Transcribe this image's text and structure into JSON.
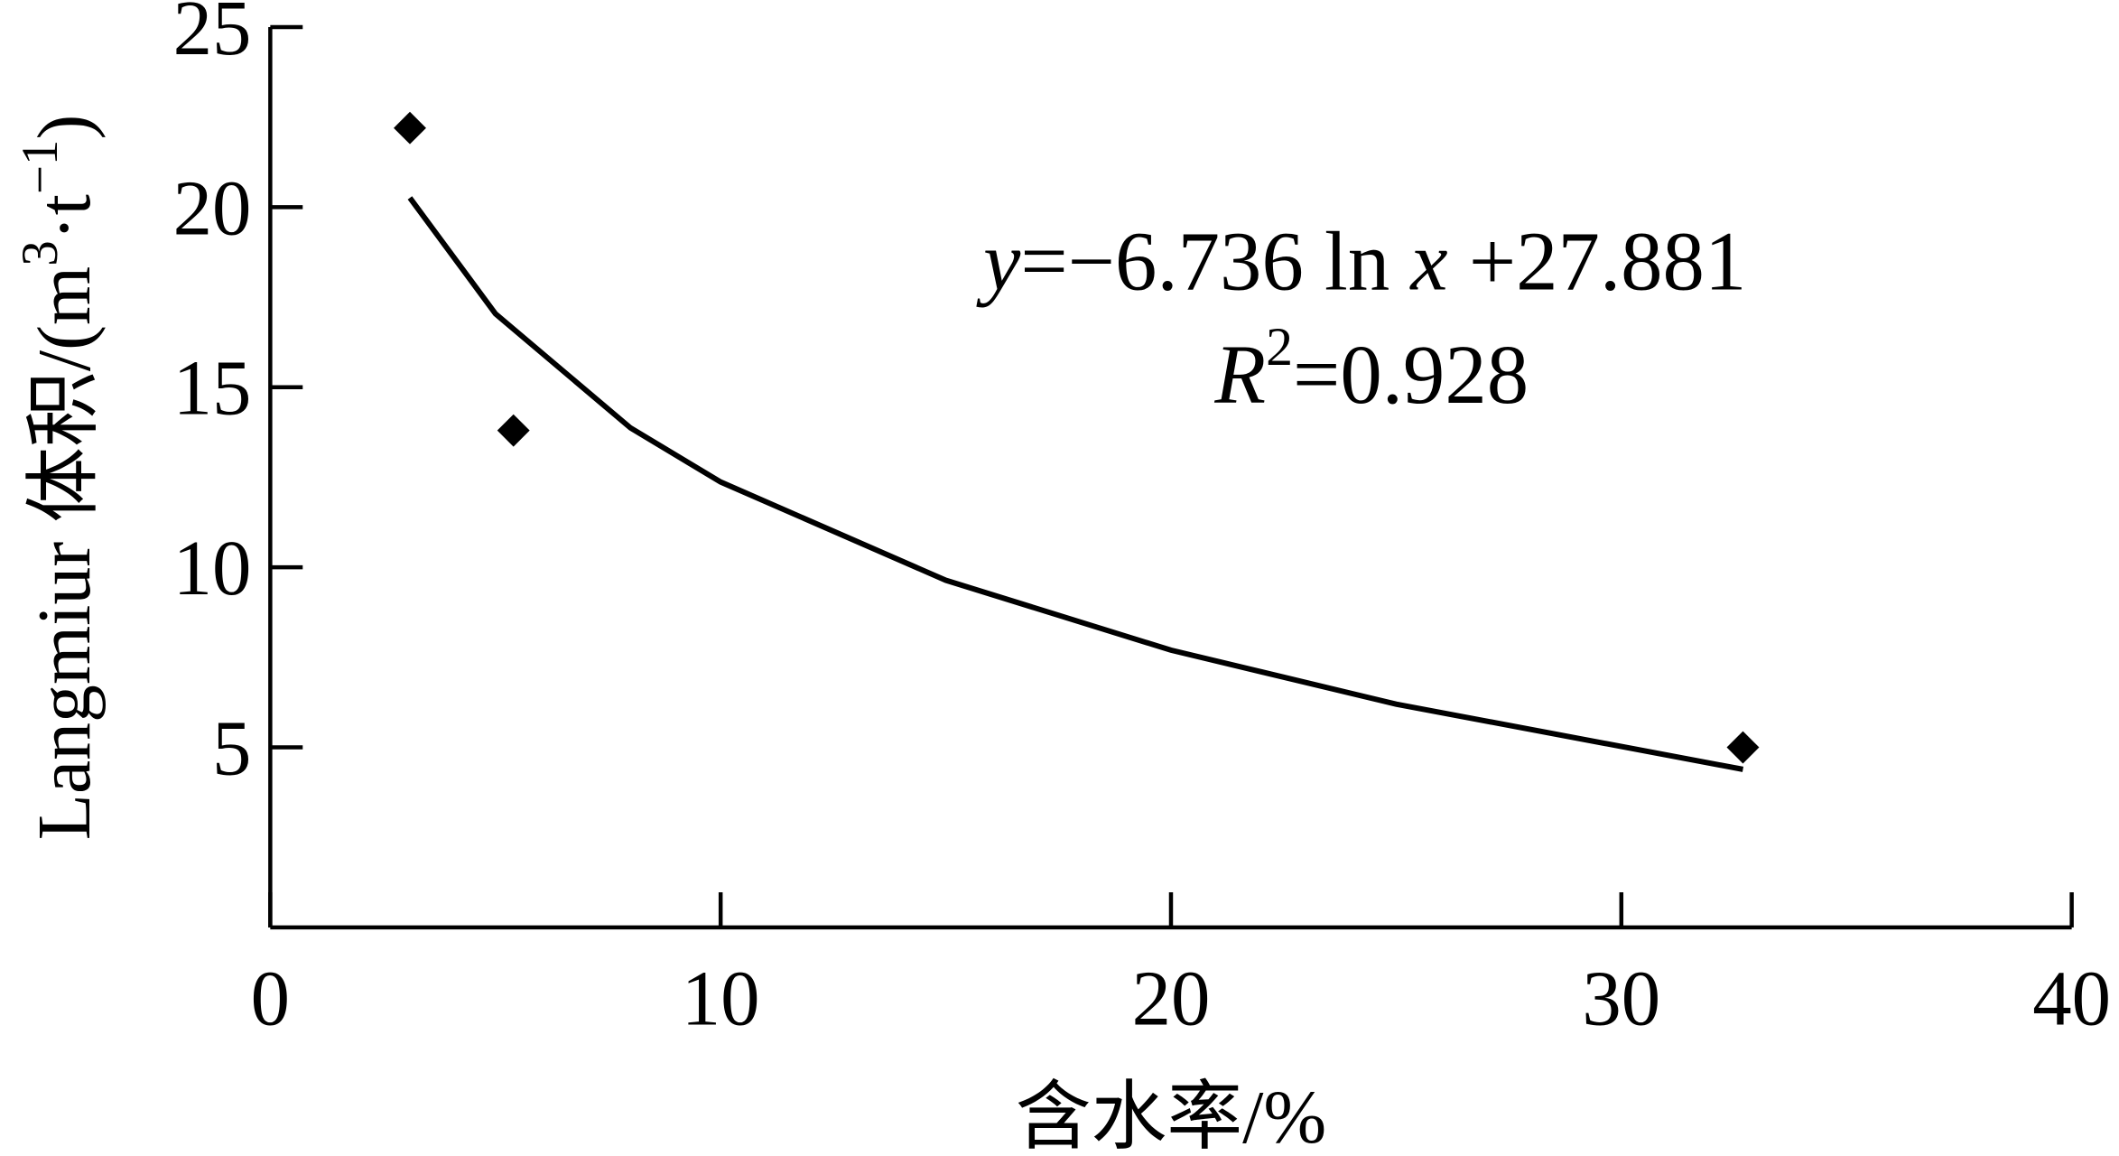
{
  "chart_data": {
    "type": "scatter",
    "x_label": "含水率/%",
    "y_label": [
      "Langmiur 体积/(m",
      "3",
      "·t",
      "−1",
      ")"
    ],
    "x": [
      3.1,
      5.4,
      32.7
    ],
    "values": [
      22.2,
      13.8,
      5.0
    ],
    "color": "#000000",
    "xlim": [
      0,
      40
    ],
    "xticks": [
      0,
      10,
      20,
      30,
      40
    ],
    "ylim": [
      0,
      25
    ],
    "yticks": [
      5,
      10,
      15,
      20,
      25
    ],
    "grid": false,
    "trendline": {
      "x": [
        3.1,
        5,
        8,
        10,
        15,
        20,
        25,
        32.7
      ],
      "values": [
        20.26,
        17.04,
        13.87,
        12.37,
        9.64,
        7.7,
        6.2,
        4.39
      ],
      "color": "#000000"
    },
    "annotations": [
      [
        "y",
        "=−6.736 ln ",
        "x",
        " +27.881"
      ],
      [
        "R",
        "2",
        "=0.928"
      ]
    ]
  }
}
